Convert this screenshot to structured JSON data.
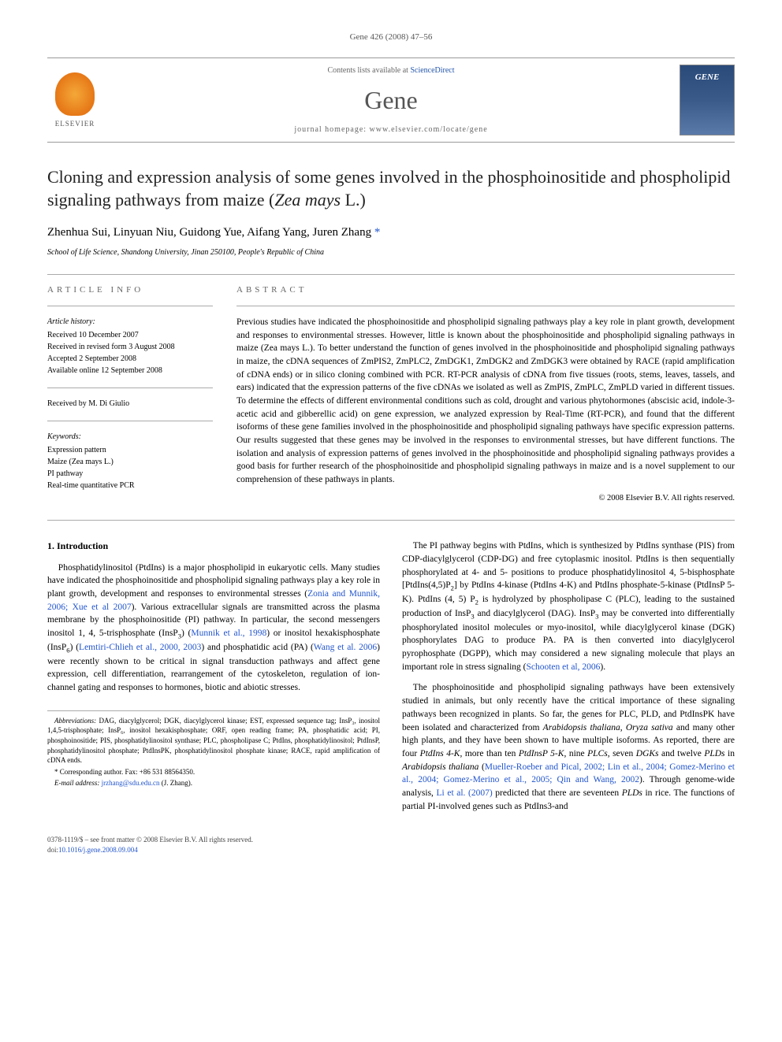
{
  "journal_ref": "Gene 426 (2008) 47–56",
  "header": {
    "publisher": "ELSEVIER",
    "contents_prefix": "Contents lists available at ",
    "contents_link": "ScienceDirect",
    "journal_name": "Gene",
    "homepage_prefix": "journal homepage: ",
    "homepage_url": "www.elsevier.com/locate/gene",
    "cover_label": "GENE"
  },
  "title_main": "Cloning and expression analysis of some genes involved in the phosphoinositide and phospholipid signaling pathways from maize (",
  "title_species": "Zea mays",
  "title_tail": " L.)",
  "authors_plain": "Zhenhua Sui, Linyuan Niu, Guidong Yue, Aifang Yang, Juren Zhang ",
  "corr_marker": "*",
  "affiliation": "School of Life Science, Shandong University, Jinan 250100, People's Republic of China",
  "info": {
    "heading": "ARTICLE INFO",
    "history_label": "Article history:",
    "history_received": "Received 10 December 2007",
    "history_revised": "Received in revised form 3 August 2008",
    "history_accepted": "Accepted 2 September 2008",
    "history_online": "Available online 12 September 2008",
    "editor": "Received by M. Di Giulio",
    "keywords_label": "Keywords:",
    "kw1": "Expression pattern",
    "kw2": "Maize (Zea mays L.)",
    "kw3": "PI pathway",
    "kw4": "Real-time quantitative PCR"
  },
  "abstract": {
    "heading": "ABSTRACT",
    "text": "Previous studies have indicated the phosphoinositide and phospholipid signaling pathways play a key role in plant growth, development and responses to environmental stresses. However, little is known about the phosphoinositide and phospholipid signaling pathways in maize (Zea mays L.). To better understand the function of genes involved in the phosphoinositide and phospholipid signaling pathways in maize, the cDNA sequences of ZmPIS2, ZmPLC2, ZmDGK1, ZmDGK2 and ZmDGK3 were obtained by RACE (rapid amplification of cDNA ends) or in silico cloning combined with PCR. RT-PCR analysis of cDNA from five tissues (roots, stems, leaves, tassels, and ears) indicated that the expression patterns of the five cDNAs we isolated as well as ZmPIS, ZmPLC, ZmPLD varied in different tissues. To determine the effects of different environmental conditions such as cold, drought and various phytohormones (abscisic acid, indole-3-acetic acid and gibberellic acid) on gene expression, we analyzed expression by Real-Time (RT-PCR), and found that the different isoforms of these gene families involved in the phosphoinositide and phospholipid signaling pathways have specific expression patterns. Our results suggested that these genes may be involved in the responses to environmental stresses, but have different functions. The isolation and analysis of expression patterns of genes involved in the phosphoinositide and phospholipid signaling pathways provides a good basis for further research of the phosphoinositide and phospholipid signaling pathways in maize and is a novel supplement to our comprehension of these pathways in plants.",
    "copyright": "© 2008 Elsevier B.V. All rights reserved."
  },
  "intro": {
    "heading": "1. Introduction",
    "p1_a": "Phosphatidylinositol (PtdIns) is a major phospholipid in eukaryotic cells. Many studies have indicated the phosphoinositide and phospholipid signaling pathways play a key role in plant growth, development and responses to environmental stresses (",
    "p1_ref1": "Zonia and Munnik, 2006; Xue et al 2007",
    "p1_b": "). Various extracellular signals are transmitted across the plasma membrane by the phosphoinositide (PI) pathway. In particular, the second messengers inositol 1, 4, 5-trisphosphate (InsP",
    "p1_c": ") (",
    "p1_ref2": "Munnik et al., 1998",
    "p1_d": ") or inositol hexakisphosphate (InsP",
    "p1_e": ") (",
    "p1_ref3": "Lemtiri-Chlieh et al., 2000, 2003",
    "p1_f": ") and phosphatidic acid (PA) (",
    "p1_ref4": "Wang et al. 2006",
    "p1_g": ") were recently shown to be critical in signal transduction pathways and affect gene expression, cell differentiation, rearrangement of the cytoskeleton, regulation of ion-channel gating and responses to hormones, biotic and abiotic stresses.",
    "p2_a": "The PI pathway begins with PtdIns, which is synthesized by PtdIns synthase (PIS) from CDP-diacylglycerol (CDP-DG) and free cytoplasmic inositol. PtdIns is then sequentially phosphorylated at 4- and 5- positions to produce phosphatidylinositol 4, 5-bisphosphate [PtdIns(4,5)P",
    "p2_b": "] by PtdIns 4-kinase (PtdIns 4-K) and PtdIns phosphate-5-kinase (PtdInsP 5-K). PtdIns (4, 5) P",
    "p2_c": " is hydrolyzed by phospholipase C (PLC), leading to the sustained production of InsP",
    "p2_d": " and diacylglycerol (DAG). InsP",
    "p2_e": " may be converted into differentially phosphorylated inositol molecules or myo-inositol, while diacylglycerol kinase (DGK) phosphorylates DAG to produce PA. PA is then converted into diacylglycerol pyrophosphate (DGPP), which may considered a new signaling molecule that plays an important role in stress signaling (",
    "p2_ref1": "Schooten et al, 2006",
    "p2_f": ").",
    "p3_a": "The phosphoinositide and phospholipid signaling pathways have been extensively studied in animals, but only recently have the critical importance of these signaling pathways been recognized in plants. So far, the genes for PLC, PLD, and PtdInsPK have been isolated and characterized from ",
    "p3_sp1": "Arabidopsis thaliana",
    "p3_b": ", ",
    "p3_sp2": "Oryza sativa",
    "p3_c": " and many other high plants, and they have been shown to have multiple isoforms. As reported, there are four ",
    "p3_g1": "PtdIns 4-K",
    "p3_d": ", more than ten ",
    "p3_g2": "PtdInsP 5-K",
    "p3_e": ", nine ",
    "p3_g3": "PLCs",
    "p3_f": ", seven ",
    "p3_g4": "DGKs",
    "p3_g": " and twelve ",
    "p3_g5": "PLDs",
    "p3_h": " in ",
    "p3_sp3": "Arabidopsis thaliana",
    "p3_i": " (",
    "p3_ref1": "Mueller-Roeber and Pical, 2002; Lin et al., 2004; Gomez-Merino et al., 2004; Gomez-Merino et al., 2005; Qin and Wang, 2002",
    "p3_j": "). Through genome-wide analysis, ",
    "p3_ref2": "Li et al. (2007)",
    "p3_k": " predicted that there are seventeen ",
    "p3_g6": "PLDs",
    "p3_l": " in rice. The functions of partial PI-involved genes such as PtdIns3-and"
  },
  "footnotes": {
    "abbrev_label": "Abbreviations:",
    "abbrev_text": " DAG, diacylglycerol; DGK, diacylglycerol kinase; EST, expressed sequence tag; InsP₃, inositol 1,4,5-trisphosphate; InsP₆, inositol hexakisphosphate; ORF, open reading frame; PA, phosphatidic acid; PI, phosphoinositide; PIS, phosphatidylinositol synthase; PLC, phospholipase C; PtdIns, phosphatidylinositol; PtdInsP, phosphatidylinositol phosphate; PtdInsPK, phosphatidylinositol phosphate kinase; RACE, rapid amplification of cDNA ends.",
    "corr_label": "* Corresponding author. Fax: +86 531 88564350.",
    "email_label": "E-mail address:",
    "email": "jrzhang@sdu.edu.cn",
    "email_suffix": " (J. Zhang)."
  },
  "footer": {
    "issn_line": "0378-1119/$ – see front matter © 2008 Elsevier B.V. All rights reserved.",
    "doi_prefix": "doi:",
    "doi": "10.1016/j.gene.2008.09.004"
  }
}
